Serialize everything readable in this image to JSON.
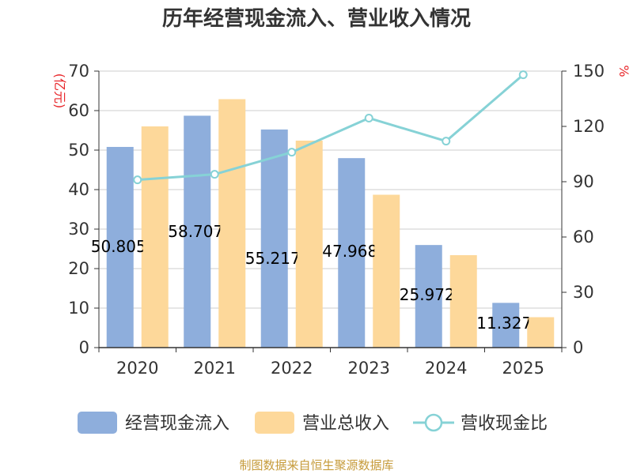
{
  "chart_data": {
    "type": "bar",
    "title": "历年经营现金流入、营业收入情况",
    "categories": [
      "2020",
      "2021",
      "2022",
      "2023",
      "2024",
      "2025"
    ],
    "series": [
      {
        "name": "经营现金流入",
        "type": "bar",
        "axis": "left",
        "color": "#8eaedc",
        "values": [
          50.805,
          58.707,
          55.217,
          47.968,
          25.972,
          11.327
        ],
        "labels": [
          "50.805",
          "58.707",
          "55.217",
          "47.968",
          "25.972",
          "11.327"
        ]
      },
      {
        "name": "营业总收入",
        "type": "bar",
        "axis": "left",
        "color": "#fdd89a",
        "values": [
          56.0,
          62.9,
          52.4,
          38.7,
          23.4,
          7.7
        ]
      },
      {
        "name": "营收现金比",
        "type": "line",
        "axis": "right",
        "color": "#86d2d6",
        "values": [
          91,
          94,
          106,
          124.5,
          112,
          148
        ]
      }
    ],
    "ylim_left": [
      0,
      70
    ],
    "ylim_right": [
      0,
      150
    ],
    "yticks_left": [
      "0",
      "10",
      "20",
      "30",
      "40",
      "50",
      "60",
      "70"
    ],
    "yticks_right": [
      "0",
      "30",
      "60",
      "90",
      "120",
      "150"
    ],
    "ylabel_left": "(亿元)",
    "ylabel_right": "%",
    "grid": true,
    "legend_position": "bottom",
    "source": "制图数据来自恒生聚源数据库"
  }
}
